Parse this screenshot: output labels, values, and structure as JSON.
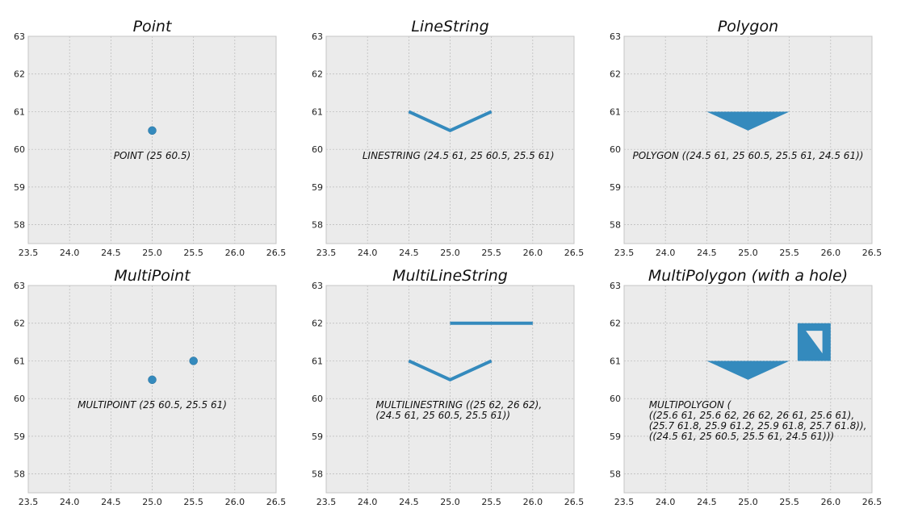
{
  "chart_data": [
    {
      "type": "scatter",
      "title": "Point",
      "xlim": [
        23.5,
        26.5
      ],
      "ylim": [
        57.5,
        63
      ],
      "xticks": [
        "23.5",
        "24.0",
        "24.5",
        "25.0",
        "25.5",
        "26.0",
        "26.5"
      ],
      "yticks": [
        "58",
        "59",
        "60",
        "61",
        "62",
        "63"
      ],
      "grid": true,
      "geometry": {
        "kind": "points",
        "points": [
          [
            25,
            60.5
          ]
        ]
      },
      "annotation": {
        "x": 25,
        "y": 59.75,
        "lines": [
          "POINT (25 60.5)"
        ]
      }
    },
    {
      "type": "line",
      "title": "LineString",
      "xlim": [
        23.5,
        26.5
      ],
      "ylim": [
        57.5,
        63
      ],
      "xticks": [
        "23.5",
        "24.0",
        "24.5",
        "25.0",
        "25.5",
        "26.0",
        "26.5"
      ],
      "yticks": [
        "58",
        "59",
        "60",
        "61",
        "62",
        "63"
      ],
      "grid": true,
      "geometry": {
        "kind": "lines",
        "lines": [
          [
            [
              24.5,
              61
            ],
            [
              25,
              60.5
            ],
            [
              25.5,
              61
            ]
          ]
        ]
      },
      "annotation": {
        "x": 25.1,
        "y": 59.75,
        "lines": [
          "LINESTRING (24.5 61, 25 60.5, 25.5 61)"
        ]
      }
    },
    {
      "type": "area",
      "title": "Polygon",
      "xlim": [
        23.5,
        26.5
      ],
      "ylim": [
        57.5,
        63
      ],
      "xticks": [
        "23.5",
        "24.0",
        "24.5",
        "25.0",
        "25.5",
        "26.0",
        "26.5"
      ],
      "yticks": [
        "58",
        "59",
        "60",
        "61",
        "62",
        "63"
      ],
      "grid": true,
      "geometry": {
        "kind": "polygons",
        "polygons": [
          {
            "exterior": [
              [
                24.5,
                61
              ],
              [
                25,
                60.5
              ],
              [
                25.5,
                61
              ],
              [
                24.5,
                61
              ]
            ],
            "holes": []
          }
        ]
      },
      "annotation": {
        "x": 25.0,
        "y": 59.75,
        "lines": [
          "POLYGON ((24.5 61, 25 60.5, 25.5 61, 24.5 61))"
        ]
      }
    },
    {
      "type": "scatter",
      "title": "MultiPoint",
      "xlim": [
        23.5,
        26.5
      ],
      "ylim": [
        57.5,
        63
      ],
      "xticks": [
        "23.5",
        "24.0",
        "24.5",
        "25.0",
        "25.5",
        "26.0",
        "26.5"
      ],
      "yticks": [
        "58",
        "59",
        "60",
        "61",
        "62",
        "63"
      ],
      "grid": true,
      "geometry": {
        "kind": "points",
        "points": [
          [
            25,
            60.5
          ],
          [
            25.5,
            61
          ]
        ]
      },
      "annotation": {
        "x": 25.0,
        "y": 59.75,
        "lines": [
          "MULTIPOINT (25 60.5, 25.5 61)"
        ]
      }
    },
    {
      "type": "line",
      "title": "MultiLineString",
      "xlim": [
        23.5,
        26.5
      ],
      "ylim": [
        57.5,
        63
      ],
      "xticks": [
        "23.5",
        "24.0",
        "24.5",
        "25.0",
        "25.5",
        "26.0",
        "26.5"
      ],
      "yticks": [
        "58",
        "59",
        "60",
        "61",
        "62",
        "63"
      ],
      "grid": true,
      "geometry": {
        "kind": "lines",
        "lines": [
          [
            [
              25,
              62
            ],
            [
              26,
              62
            ]
          ],
          [
            [
              24.5,
              61
            ],
            [
              25,
              60.5
            ],
            [
              25.5,
              61
            ]
          ]
        ]
      },
      "annotation": {
        "x": 24.1,
        "y": 59.75,
        "lines": [
          "MULTILINESTRING ((25 62, 26 62),",
          "(24.5 61, 25 60.5, 25.5 61))"
        ]
      }
    },
    {
      "type": "area",
      "title": "MultiPolygon (with a hole)",
      "xlim": [
        23.5,
        26.5
      ],
      "ylim": [
        57.5,
        63
      ],
      "xticks": [
        "23.5",
        "24.0",
        "24.5",
        "25.0",
        "25.5",
        "26.0",
        "26.5"
      ],
      "yticks": [
        "58",
        "59",
        "60",
        "61",
        "62",
        "63"
      ],
      "grid": true,
      "geometry": {
        "kind": "polygons",
        "polygons": [
          {
            "exterior": [
              [
                25.6,
                61
              ],
              [
                25.6,
                62
              ],
              [
                26,
                62
              ],
              [
                26,
                61
              ],
              [
                25.6,
                61
              ]
            ],
            "holes": [
              [
                [
                  25.7,
                  61.8
                ],
                [
                  25.9,
                  61.2
                ],
                [
                  25.9,
                  61.8
                ],
                [
                  25.7,
                  61.8
                ]
              ]
            ]
          },
          {
            "exterior": [
              [
                24.5,
                61
              ],
              [
                25,
                60.5
              ],
              [
                25.5,
                61
              ],
              [
                24.5,
                61
              ]
            ],
            "holes": []
          }
        ]
      },
      "annotation": {
        "x": 23.8,
        "y": 59.75,
        "lines": [
          "MULTIPOLYGON (",
          "((25.6 61, 25.6 62, 26 62, 26 61, 25.6 61),",
          "(25.7 61.8, 25.9 61.2, 25.9 61.8, 25.7 61.8)),",
          "((24.5 61, 25 60.5, 25.5 61, 24.5 61)))"
        ]
      }
    }
  ],
  "colors": {
    "plot_background": "#ebebeb",
    "grid": "#b8b8b8",
    "frame": "#c4c4c4",
    "geometry": "#348abd"
  }
}
